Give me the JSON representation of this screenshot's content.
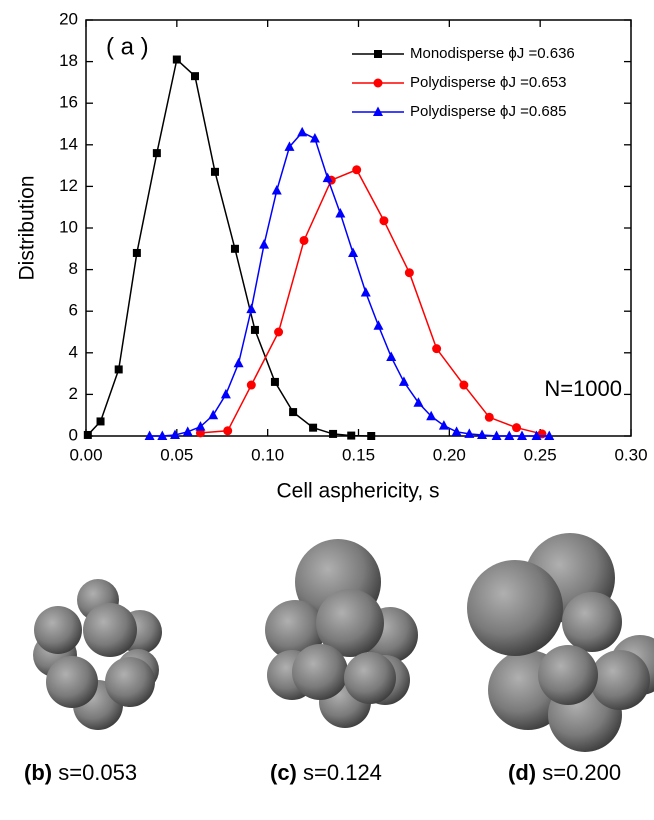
{
  "chart_data": {
    "type": "line",
    "xlabel": "Cell asphericity, s",
    "ylabel": "Distribution",
    "annotations": [
      "( a )",
      "N=1000"
    ],
    "xlim": [
      0,
      0.3
    ],
    "ylim": [
      0,
      20
    ],
    "xticks": [
      {
        "value": 0,
        "label": "0.00"
      },
      {
        "value": 0.05,
        "label": "0.05"
      },
      {
        "value": 0.1,
        "label": "0.10"
      },
      {
        "value": 0.15,
        "label": "0.15"
      },
      {
        "value": 0.2,
        "label": "0.20"
      },
      {
        "value": 0.25,
        "label": "0.25"
      },
      {
        "value": 0.3,
        "label": "0.30"
      }
    ],
    "yticks": [
      0,
      2,
      4,
      6,
      8,
      10,
      12,
      14,
      16,
      18,
      20
    ],
    "legend": "upper right",
    "series": [
      {
        "name": "Monodisperse ϕJ =0.636",
        "color": "#000000",
        "marker": "square",
        "x": [
          0.001,
          0.008,
          0.018,
          0.028,
          0.039,
          0.05,
          0.06,
          0.071,
          0.082,
          0.093,
          0.104,
          0.114,
          0.125,
          0.136,
          0.146,
          0.157
        ],
        "values": [
          0.05,
          0.7,
          3.2,
          8.8,
          13.6,
          18.1,
          17.3,
          12.7,
          9.0,
          5.1,
          2.6,
          1.15,
          0.4,
          0.1,
          0.02,
          0
        ]
      },
      {
        "name": "Polydisperse ϕJ =0.653",
        "color": "#ff0000",
        "marker": "circle",
        "x": [
          0.063,
          0.078,
          0.091,
          0.106,
          0.12,
          0.135,
          0.149,
          0.164,
          0.178,
          0.193,
          0.208,
          0.222,
          0.237,
          0.251
        ],
        "values": [
          0.15,
          0.25,
          2.45,
          5.0,
          9.4,
          12.3,
          12.8,
          10.35,
          7.85,
          4.2,
          2.45,
          0.9,
          0.4,
          0.1
        ]
      },
      {
        "name": "Polydisperse ϕJ =0.685",
        "color": "#0000ff",
        "marker": "triangle",
        "x": [
          0.035,
          0.042,
          0.049,
          0.056,
          0.063,
          0.07,
          0.077,
          0.084,
          0.091,
          0.098,
          0.105,
          0.112,
          0.119,
          0.126,
          0.133,
          0.14,
          0.147,
          0.154,
          0.161,
          0.168,
          0.175,
          0.183,
          0.19,
          0.197,
          0.204,
          0.211,
          0.218,
          0.226,
          0.233,
          0.24,
          0.248,
          0.255
        ],
        "values": [
          0,
          0,
          0.05,
          0.2,
          0.45,
          1.0,
          2.0,
          3.5,
          6.1,
          9.2,
          11.8,
          13.9,
          14.6,
          14.3,
          12.4,
          10.7,
          8.8,
          6.9,
          5.3,
          3.8,
          2.6,
          1.6,
          0.95,
          0.5,
          0.2,
          0.1,
          0.05,
          0,
          0,
          0,
          0,
          0
        ]
      }
    ]
  },
  "panels": [
    {
      "label": "(b)",
      "text": "s=0.053"
    },
    {
      "label": "(c)",
      "text": "s=0.124"
    },
    {
      "label": "(d)",
      "text": "s=0.200"
    }
  ]
}
